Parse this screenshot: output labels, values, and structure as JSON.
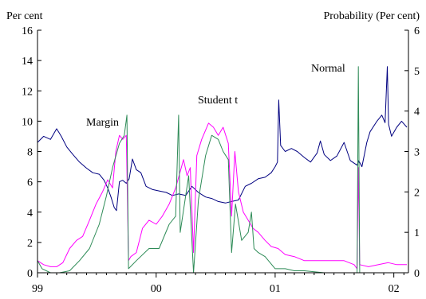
{
  "chart_data": {
    "type": "line",
    "left_axis_title": "Per cent",
    "right_axis_title": "Probability (Per cent)",
    "x_axis": {
      "range": [
        "1999-01-01",
        "2002-02-15"
      ],
      "tick_labels": [
        "99",
        "00",
        "01",
        "02"
      ],
      "tick_dates": [
        "1999-01-01",
        "2000-01-01",
        "2001-01-01",
        "2002-01-01"
      ]
    },
    "left_axis": {
      "range": [
        0,
        16
      ],
      "ticks": [
        "0",
        "2",
        "4",
        "6",
        "8",
        "10",
        "12",
        "14",
        "16"
      ]
    },
    "right_axis": {
      "range": [
        0,
        6
      ],
      "ticks": [
        "0",
        "1",
        "2",
        "3",
        "4",
        "5",
        "6"
      ]
    },
    "grid": false,
    "legend": "none",
    "annotations": [
      {
        "text": "Margin",
        "series": "Margin"
      },
      {
        "text": "Student t",
        "series": "Student t"
      },
      {
        "text": "Normal",
        "series": "Normal"
      }
    ],
    "series": [
      {
        "name": "Margin",
        "axis": "left",
        "color": "#000080",
        "points": [
          [
            "1999-01-01",
            8.6
          ],
          [
            "1999-01-20",
            9.0
          ],
          [
            "1999-02-10",
            8.8
          ],
          [
            "1999-03-01",
            9.5
          ],
          [
            "1999-03-15",
            9.0
          ],
          [
            "1999-04-01",
            8.3
          ],
          [
            "1999-04-20",
            7.8
          ],
          [
            "1999-05-10",
            7.3
          ],
          [
            "1999-06-01",
            6.9
          ],
          [
            "1999-06-20",
            6.6
          ],
          [
            "1999-07-10",
            6.5
          ],
          [
            "1999-07-25",
            6.1
          ],
          [
            "1999-08-05",
            5.6
          ],
          [
            "1999-08-15",
            5.0
          ],
          [
            "1999-08-25",
            4.3
          ],
          [
            "1999-09-01",
            4.1
          ],
          [
            "1999-09-10",
            6.0
          ],
          [
            "1999-09-20",
            6.1
          ],
          [
            "1999-10-01",
            5.9
          ],
          [
            "1999-10-10",
            6.2
          ],
          [
            "1999-10-20",
            7.5
          ],
          [
            "1999-11-01",
            6.8
          ],
          [
            "1999-11-15",
            6.6
          ],
          [
            "1999-12-01",
            5.7
          ],
          [
            "1999-12-20",
            5.5
          ],
          [
            "2000-01-10",
            5.4
          ],
          [
            "2000-02-01",
            5.3
          ],
          [
            "2000-02-20",
            5.1
          ],
          [
            "2000-03-10",
            5.2
          ],
          [
            "2000-04-01",
            5.1
          ],
          [
            "2000-04-20",
            5.7
          ],
          [
            "2000-05-10",
            5.3
          ],
          [
            "2000-06-01",
            5.0
          ],
          [
            "2000-06-20",
            4.9
          ],
          [
            "2000-07-10",
            4.7
          ],
          [
            "2000-08-01",
            4.6
          ],
          [
            "2000-08-20",
            4.7
          ],
          [
            "2000-09-10",
            4.8
          ],
          [
            "2000-10-01",
            5.7
          ],
          [
            "2000-10-20",
            5.9
          ],
          [
            "2000-11-10",
            6.2
          ],
          [
            "2000-12-01",
            6.3
          ],
          [
            "2000-12-20",
            6.6
          ],
          [
            "2001-01-01",
            7.0
          ],
          [
            "2001-01-08",
            7.3
          ],
          [
            "2001-01-12",
            11.4
          ],
          [
            "2001-01-18",
            8.4
          ],
          [
            "2001-02-01",
            8.0
          ],
          [
            "2001-02-20",
            8.2
          ],
          [
            "2001-03-10",
            8.0
          ],
          [
            "2001-04-01",
            7.6
          ],
          [
            "2001-04-20",
            7.3
          ],
          [
            "2001-05-10",
            7.9
          ],
          [
            "2001-05-20",
            8.7
          ],
          [
            "2001-06-01",
            7.8
          ],
          [
            "2001-06-20",
            7.4
          ],
          [
            "2001-07-10",
            7.7
          ],
          [
            "2001-08-01",
            8.6
          ],
          [
            "2001-08-20",
            7.4
          ],
          [
            "2001-09-10",
            7.1
          ],
          [
            "2001-09-15",
            7.4
          ],
          [
            "2001-09-25",
            7.0
          ],
          [
            "2001-10-10",
            8.6
          ],
          [
            "2001-10-20",
            9.3
          ],
          [
            "2001-11-10",
            10.0
          ],
          [
            "2001-11-25",
            10.4
          ],
          [
            "2001-12-05",
            9.9
          ],
          [
            "2001-12-12",
            13.6
          ],
          [
            "2001-12-16",
            9.8
          ],
          [
            "2001-12-25",
            9.0
          ],
          [
            "2002-01-10",
            9.6
          ],
          [
            "2002-01-25",
            10.0
          ],
          [
            "2002-02-10",
            9.6
          ]
        ]
      },
      {
        "name": "Student t",
        "axis": "right",
        "color": "#ff00ff",
        "points": [
          [
            "1999-01-01",
            0.3
          ],
          [
            "1999-01-20",
            0.2
          ],
          [
            "1999-02-10",
            0.15
          ],
          [
            "1999-03-01",
            0.15
          ],
          [
            "1999-03-20",
            0.25
          ],
          [
            "1999-04-10",
            0.6
          ],
          [
            "1999-05-01",
            0.8
          ],
          [
            "1999-05-20",
            0.9
          ],
          [
            "1999-06-10",
            1.3
          ],
          [
            "1999-06-30",
            1.7
          ],
          [
            "1999-07-20",
            2.0
          ],
          [
            "1999-08-05",
            2.3
          ],
          [
            "1999-08-20",
            2.1
          ],
          [
            "1999-08-30",
            3.0
          ],
          [
            "1999-09-10",
            3.4
          ],
          [
            "1999-09-20",
            3.3
          ],
          [
            "1999-10-01",
            3.4
          ],
          [
            "1999-10-08",
            0.3
          ],
          [
            "1999-10-15",
            0.4
          ],
          [
            "1999-11-01",
            0.5
          ],
          [
            "1999-11-20",
            1.1
          ],
          [
            "1999-12-10",
            1.3
          ],
          [
            "2000-01-01",
            1.2
          ],
          [
            "2000-01-20",
            1.4
          ],
          [
            "2000-02-10",
            1.7
          ],
          [
            "2000-03-01",
            2.1
          ],
          [
            "2000-03-15",
            2.5
          ],
          [
            "2000-03-25",
            2.8
          ],
          [
            "2000-04-05",
            2.4
          ],
          [
            "2000-04-15",
            2.6
          ],
          [
            "2000-04-25",
            0.5
          ],
          [
            "2000-05-05",
            2.9
          ],
          [
            "2000-05-20",
            3.3
          ],
          [
            "2000-06-10",
            3.7
          ],
          [
            "2000-06-25",
            3.6
          ],
          [
            "2000-07-10",
            3.4
          ],
          [
            "2000-07-25",
            3.6
          ],
          [
            "2000-08-10",
            3.2
          ],
          [
            "2000-08-20",
            1.4
          ],
          [
            "2000-08-30",
            3.0
          ],
          [
            "2000-09-10",
            2.0
          ],
          [
            "2000-09-25",
            1.5
          ],
          [
            "2000-10-10",
            1.3
          ],
          [
            "2000-10-25",
            1.1
          ],
          [
            "2000-11-10",
            1.0
          ],
          [
            "2000-12-01",
            0.8
          ],
          [
            "2000-12-20",
            0.65
          ],
          [
            "2001-01-10",
            0.6
          ],
          [
            "2001-02-01",
            0.45
          ],
          [
            "2001-03-01",
            0.4
          ],
          [
            "2001-04-01",
            0.3
          ],
          [
            "2001-05-01",
            0.3
          ],
          [
            "2001-06-01",
            0.3
          ],
          [
            "2001-07-01",
            0.3
          ],
          [
            "2001-08-01",
            0.3
          ],
          [
            "2001-09-01",
            0.2
          ],
          [
            "2001-09-10",
            0.1
          ],
          [
            "2001-09-14",
            2.6
          ],
          [
            "2001-09-18",
            0.2
          ],
          [
            "2001-10-15",
            0.15
          ],
          [
            "2001-11-15",
            0.2
          ],
          [
            "2001-12-15",
            0.25
          ],
          [
            "2002-01-10",
            0.2
          ],
          [
            "2002-02-10",
            0.2
          ]
        ]
      },
      {
        "name": "Normal",
        "axis": "right",
        "color": "#2e8b57",
        "points": [
          [
            "1999-01-01",
            0.3
          ],
          [
            "1999-01-15",
            0.1
          ],
          [
            "1999-02-10",
            0.0
          ],
          [
            "1999-03-10",
            0.0
          ],
          [
            "1999-04-10",
            0.05
          ],
          [
            "1999-05-10",
            0.3
          ],
          [
            "1999-06-10",
            0.6
          ],
          [
            "1999-07-10",
            1.2
          ],
          [
            "1999-08-01",
            1.9
          ],
          [
            "1999-08-20",
            2.6
          ],
          [
            "1999-09-10",
            3.2
          ],
          [
            "1999-09-25",
            3.4
          ],
          [
            "1999-10-03",
            3.9
          ],
          [
            "1999-10-08",
            0.1
          ],
          [
            "1999-11-01",
            0.3
          ],
          [
            "1999-12-10",
            0.6
          ],
          [
            "2000-01-10",
            0.6
          ],
          [
            "2000-02-10",
            1.2
          ],
          [
            "2000-03-01",
            1.4
          ],
          [
            "2000-03-10",
            3.9
          ],
          [
            "2000-03-15",
            1.0
          ],
          [
            "2000-04-10",
            2.4
          ],
          [
            "2000-04-25",
            0.0
          ],
          [
            "2000-05-10",
            1.8
          ],
          [
            "2000-06-01",
            2.9
          ],
          [
            "2000-06-20",
            3.4
          ],
          [
            "2000-07-10",
            3.3
          ],
          [
            "2000-07-25",
            3.0
          ],
          [
            "2000-08-10",
            2.8
          ],
          [
            "2000-08-20",
            0.5
          ],
          [
            "2000-09-01",
            1.7
          ],
          [
            "2000-09-20",
            0.8
          ],
          [
            "2000-10-10",
            1.0
          ],
          [
            "2000-10-20",
            1.5
          ],
          [
            "2000-10-28",
            0.6
          ],
          [
            "2000-11-10",
            0.5
          ],
          [
            "2000-12-01",
            0.4
          ],
          [
            "2001-01-01",
            0.1
          ],
          [
            "2001-02-01",
            0.1
          ],
          [
            "2001-03-01",
            0.05
          ],
          [
            "2001-04-01",
            0.05
          ],
          [
            "2001-06-01",
            0.0
          ],
          [
            "2001-08-01",
            0.0
          ],
          [
            "2001-09-10",
            0.0
          ],
          [
            "2001-09-14",
            5.1
          ],
          [
            "2001-09-18",
            0.0
          ],
          [
            "2001-11-01",
            0.0
          ],
          [
            "2002-01-01",
            0.0
          ],
          [
            "2002-02-10",
            0.0
          ]
        ]
      }
    ]
  }
}
